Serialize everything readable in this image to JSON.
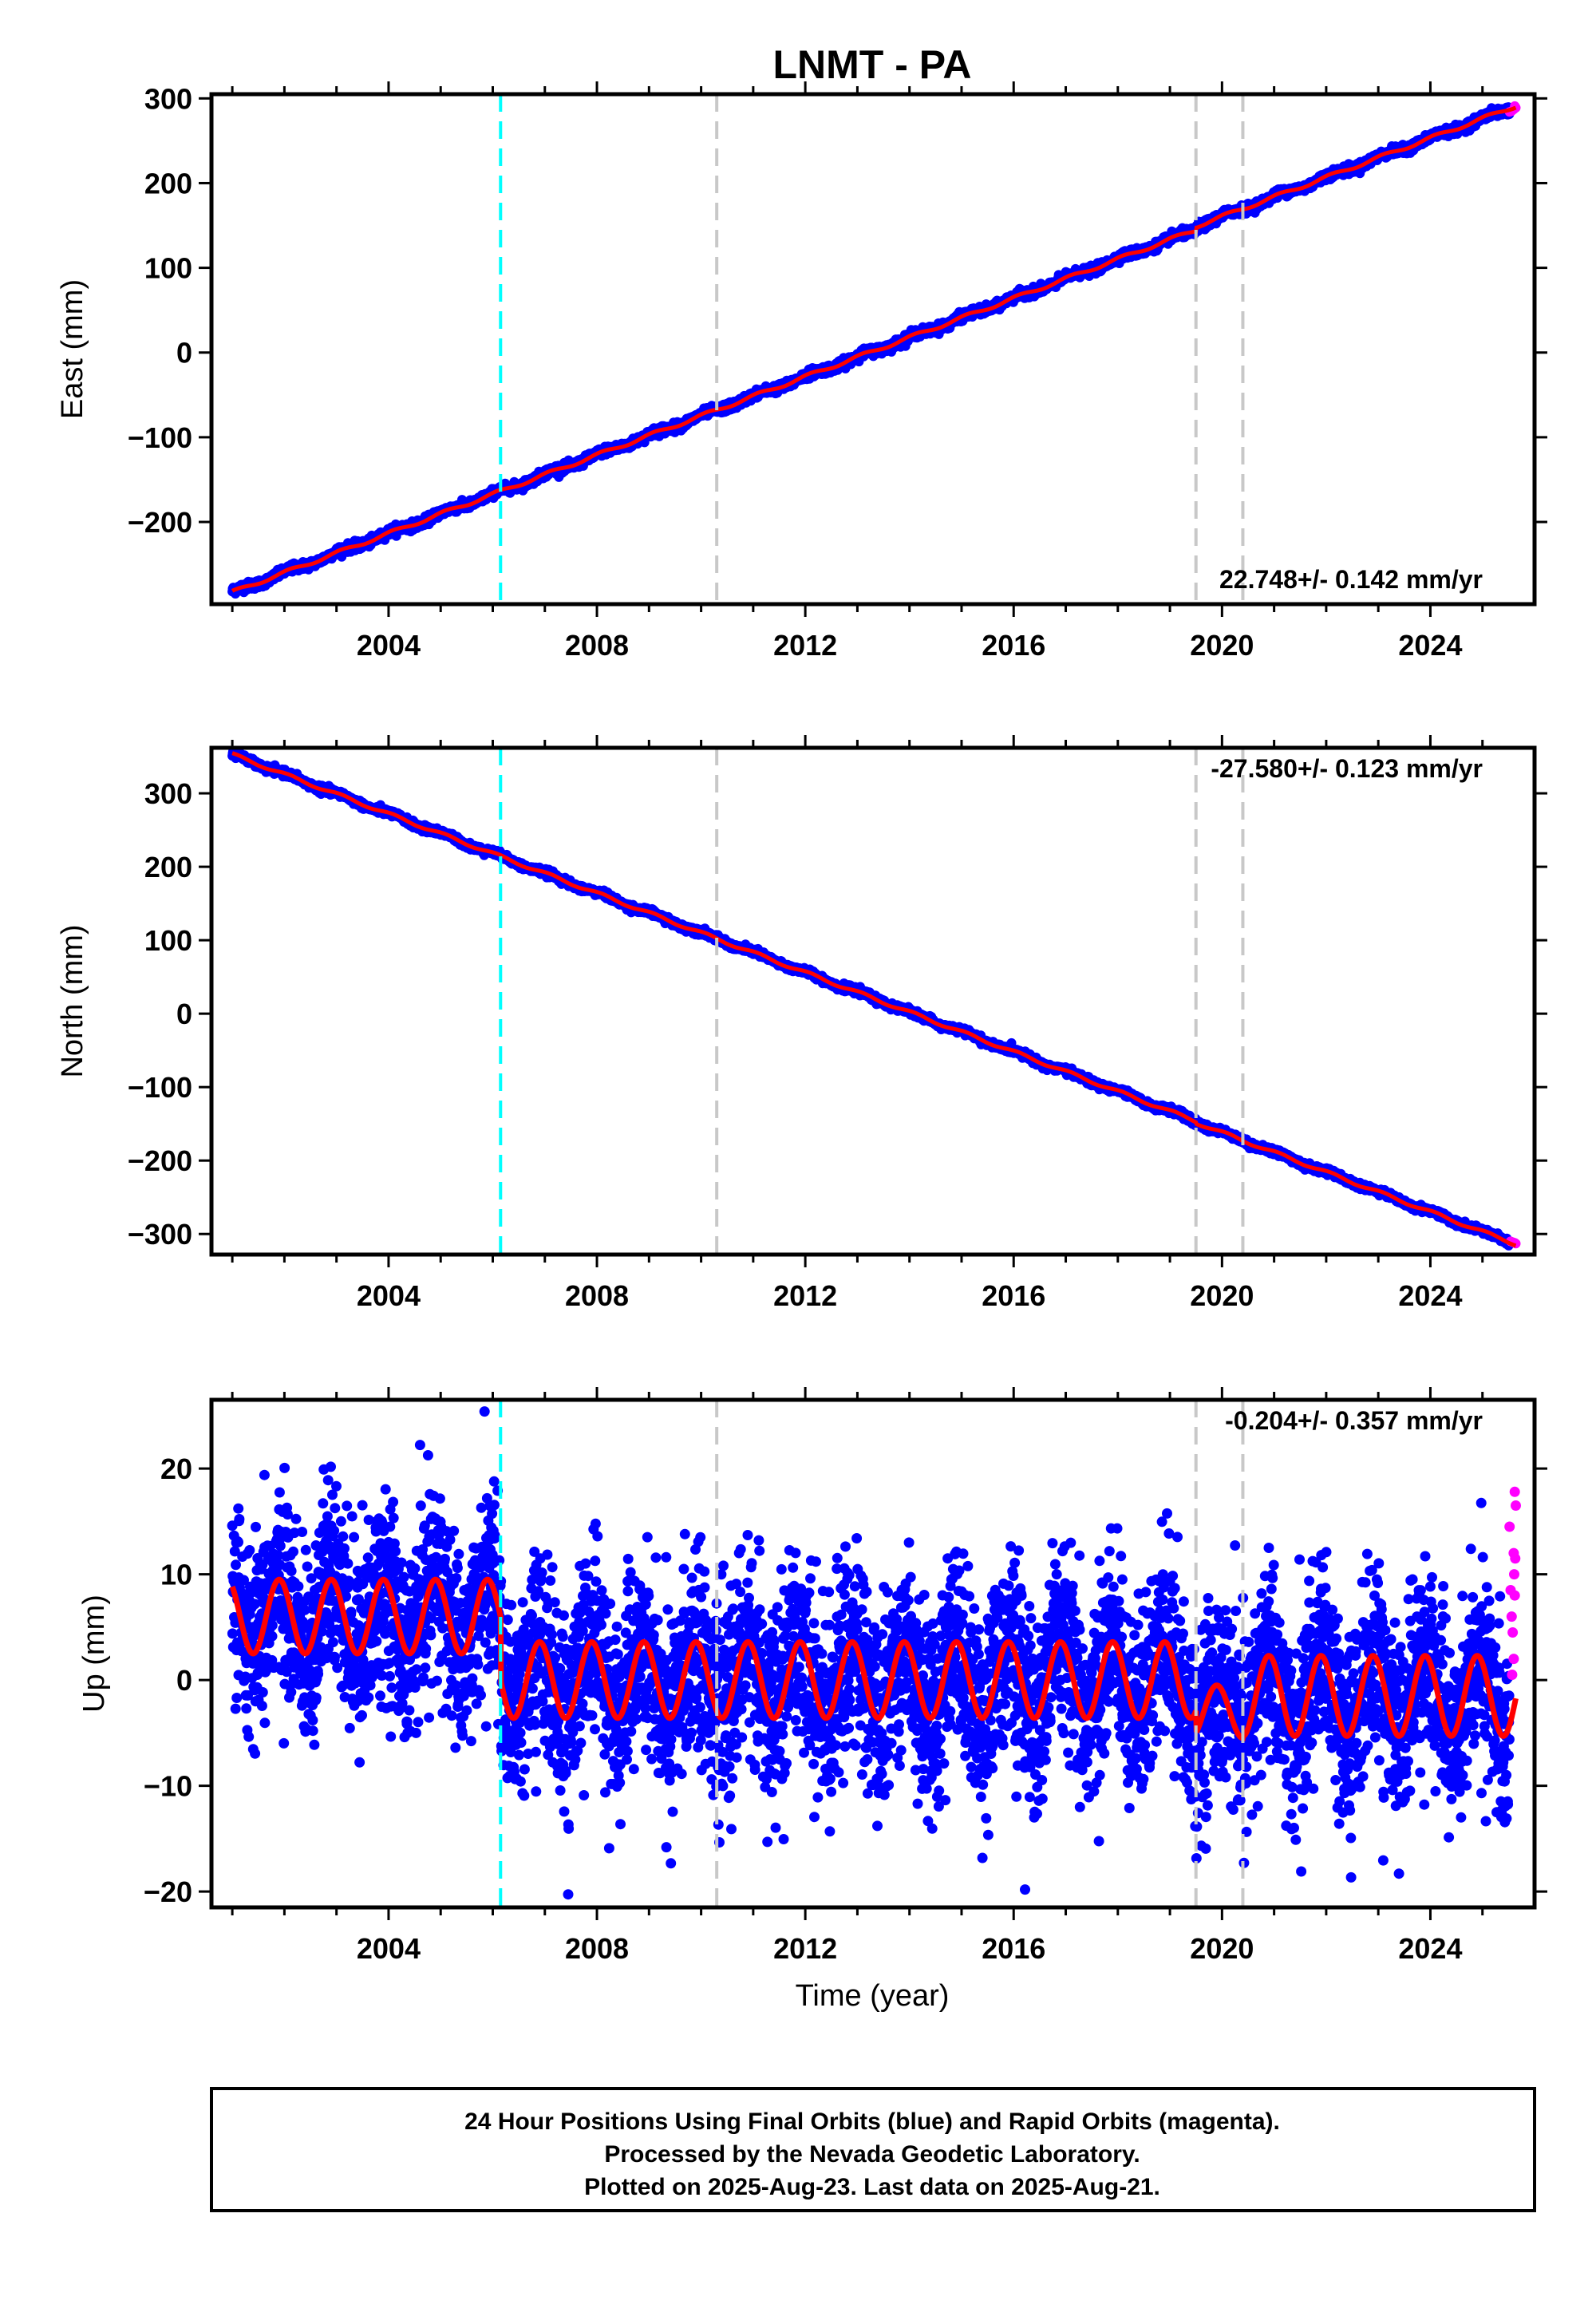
{
  "title": "LNMT - PA",
  "xlabel": "Time (year)",
  "colors": {
    "final_orbits": "#0000ff",
    "rapid_orbits": "#ff00ff",
    "model_fit": "#ff0000",
    "event_line": "#00ffff",
    "equipment_line": "#c8c8c8",
    "frame": "#000000"
  },
  "footer": {
    "line1": "24 Hour Positions Using Final Orbits (blue) and Rapid Orbits (magenta).",
    "line2": "Processed by the Nevada Geodetic Laboratory.",
    "line3": "Plotted on 2025-Aug-23. Last data on 2025-Aug-21."
  },
  "chart_data": [
    {
      "type": "scatter",
      "component": "east",
      "ylabel": "East (mm)",
      "rate_label": "22.748+/- 0.142 mm/yr",
      "xlim": [
        2000.6,
        2026.0
      ],
      "ylim": [
        -297,
        305
      ],
      "xticks": [
        2004,
        2008,
        2012,
        2016,
        2020,
        2024
      ],
      "yticks": [
        -200,
        -100,
        0,
        100,
        200,
        300
      ],
      "x_start": 2001.0,
      "x_end": 2025.64,
      "y_start": -283,
      "y_end": 287,
      "breaks": [
        {
          "x": 2019.5,
          "y": 128
        },
        {
          "x": 2019.56,
          "y": 133
        }
      ],
      "seasonal_amplitude": 2,
      "noise_amplitude": 2.5,
      "rapid_points": [
        [
          2025.52,
          284
        ],
        [
          2025.56,
          285
        ],
        [
          2025.6,
          287
        ],
        [
          2025.64,
          289
        ],
        [
          2025.62,
          291
        ]
      ],
      "event_lines": [
        {
          "x": 2006.15,
          "kind": "event"
        },
        {
          "x": 2010.3,
          "kind": "equipment"
        },
        {
          "x": 2019.5,
          "kind": "equipment"
        },
        {
          "x": 2020.4,
          "kind": "equipment"
        }
      ]
    },
    {
      "type": "scatter",
      "component": "north",
      "ylabel": "North (mm)",
      "rate_label": "-27.580+/- 0.123 mm/yr",
      "xlim": [
        2000.6,
        2026.0
      ],
      "ylim": [
        -328,
        362
      ],
      "xticks": [
        2004,
        2008,
        2012,
        2016,
        2020,
        2024
      ],
      "yticks": [
        -300,
        -200,
        -100,
        0,
        100,
        200,
        300
      ],
      "x_start": 2001.0,
      "x_end": 2025.64,
      "y_start": 353,
      "y_end": -312,
      "breaks": [
        {
          "x": 2019.5,
          "y": -152
        },
        {
          "x": 2019.56,
          "y": -155
        }
      ],
      "seasonal_amplitude": 2,
      "noise_amplitude": 2.2,
      "rapid_points": [
        [
          2025.54,
          -310
        ],
        [
          2025.58,
          -311
        ],
        [
          2025.62,
          -312
        ],
        [
          2025.64,
          -313
        ]
      ],
      "event_lines": [
        {
          "x": 2006.15,
          "kind": "event"
        },
        {
          "x": 2010.3,
          "kind": "equipment"
        },
        {
          "x": 2019.5,
          "kind": "equipment"
        },
        {
          "x": 2020.4,
          "kind": "equipment"
        }
      ]
    },
    {
      "type": "scatter",
      "component": "up",
      "ylabel": "Up (mm)",
      "rate_label": "-0.204+/- 0.357 mm/yr",
      "xlim": [
        2000.6,
        2026.0
      ],
      "ylim": [
        -21.5,
        26.5
      ],
      "xticks": [
        2004,
        2008,
        2012,
        2016,
        2020,
        2024
      ],
      "yticks": [
        -20,
        -10,
        0,
        10,
        20
      ],
      "segments": [
        {
          "x0": 2001.0,
          "x1": 2006.15,
          "mean": 6.0,
          "amplitude": 3.5
        },
        {
          "x0": 2006.15,
          "x1": 2019.5,
          "mean": 0.0,
          "amplitude": 3.6
        },
        {
          "x0": 2019.5,
          "x1": 2020.4,
          "mean": -3.0,
          "amplitude": 2.5
        },
        {
          "x0": 2020.4,
          "x1": 2025.64,
          "mean": -1.5,
          "amplitude": 3.8
        }
      ],
      "noise_amplitude": 4.5,
      "rapid_points": [
        [
          2025.52,
          14.5
        ],
        [
          2025.54,
          8.5
        ],
        [
          2025.56,
          6
        ],
        [
          2025.58,
          4.5
        ],
        [
          2025.6,
          12
        ],
        [
          2025.61,
          10
        ],
        [
          2025.62,
          17.8
        ],
        [
          2025.63,
          11.5
        ],
        [
          2025.64,
          16.5
        ],
        [
          2025.6,
          2
        ],
        [
          2025.57,
          0.5
        ],
        [
          2025.62,
          8
        ]
      ],
      "event_lines": [
        {
          "x": 2006.15,
          "kind": "event"
        },
        {
          "x": 2010.3,
          "kind": "equipment"
        },
        {
          "x": 2019.5,
          "kind": "equipment"
        },
        {
          "x": 2020.4,
          "kind": "equipment"
        }
      ]
    }
  ]
}
